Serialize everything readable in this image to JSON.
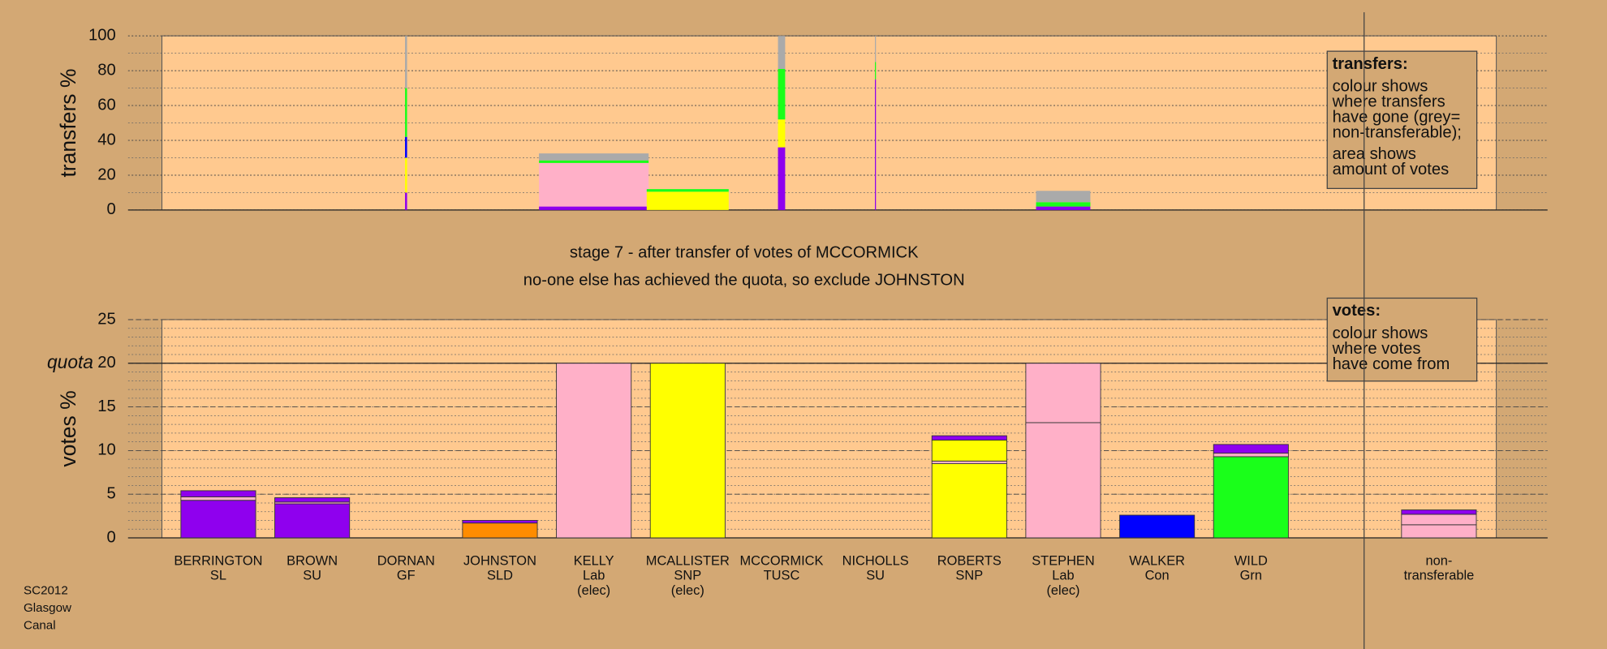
{
  "chart_data": [
    {
      "type": "bar",
      "stacked": true,
      "ylabel": "transfers %",
      "ylim": [
        0,
        100
      ],
      "yticks": [
        0,
        20,
        40,
        60,
        80,
        100
      ],
      "minor_yticks": [
        0,
        10,
        20,
        30,
        40,
        50,
        60,
        70,
        80,
        90,
        100
      ],
      "major_grid": "dotted",
      "bars": [
        {
          "category": 2,
          "amount": 2,
          "segments": [
            {
              "color": "#8f00ee",
              "value": 10
            },
            {
              "color": "#ffff00",
              "value": 20
            },
            {
              "color": "#0000ff",
              "value": 12
            },
            {
              "color": "#1aff1a",
              "value": 28
            },
            {
              "color": "#aaaaaa",
              "value": 30
            }
          ]
        },
        {
          "category": 4,
          "amount": 107,
          "segments": [
            {
              "color": "#8f00ee",
              "value": 2
            },
            {
              "color": "#ffb0c8",
              "value": 25
            },
            {
              "color": "#1aff1a",
              "value": 1.5
            },
            {
              "color": "#aaaaaa",
              "value": 4
            }
          ]
        },
        {
          "category": 5,
          "amount": 80,
          "segments": [
            {
              "color": "#ffff00",
              "value": 10.5
            },
            {
              "color": "#1aff1a",
              "value": 1.5
            }
          ]
        },
        {
          "category": 6,
          "amount": 7,
          "segments": [
            {
              "color": "#8f00ee",
              "value": 36
            },
            {
              "color": "#ffff00",
              "value": 16
            },
            {
              "color": "#1aff1a",
              "value": 29
            },
            {
              "color": "#aaaaaa",
              "value": 19
            }
          ]
        },
        {
          "category": 7,
          "amount": 1,
          "segments": [
            {
              "color": "#8f00ee",
              "value": 75
            },
            {
              "color": "#1aff1a",
              "value": 10
            },
            {
              "color": "#aaaaaa",
              "value": 15
            }
          ]
        },
        {
          "category": 9,
          "amount": 53,
          "segments": [
            {
              "color": "#8f00ee",
              "value": 2
            },
            {
              "color": "#1aff1a",
              "value": 2.5
            },
            {
              "color": "#aaaaaa",
              "value": 6.5
            }
          ]
        }
      ],
      "legend": {
        "title": "transfers:",
        "paragraphs": [
          [
            "colour shows",
            "where transfers",
            "have gone (grey=",
            "non-transferable);"
          ],
          [
            "area shows",
            "amount of votes"
          ]
        ]
      }
    },
    {
      "type": "bar",
      "stacked": true,
      "ylabel": "votes %",
      "ylim": [
        0,
        25
      ],
      "yticks": [
        0,
        5,
        10,
        15,
        20,
        25
      ],
      "minor_yticks": [
        0,
        1,
        2,
        3,
        4,
        5,
        6,
        7,
        8,
        9,
        10,
        11,
        12,
        13,
        14,
        15,
        16,
        17,
        18,
        19,
        20,
        21,
        22,
        23,
        24,
        25
      ],
      "major_grid": "dashed",
      "quota": 20,
      "quota_label": "quota",
      "categories": [
        [
          "BERRINGTON",
          "SL"
        ],
        [
          "BROWN",
          "SU"
        ],
        [
          "DORNAN",
          "GF"
        ],
        [
          "JOHNSTON",
          "SLD"
        ],
        [
          "KELLY",
          "Lab",
          "(elec)"
        ],
        [
          "MCALLISTER",
          "SNP",
          "(elec)"
        ],
        [
          "MCCORMICK",
          "TUSC"
        ],
        [
          "NICHOLLS",
          "SU"
        ],
        [
          "ROBERTS",
          "SNP"
        ],
        [
          "STEPHEN",
          "Lab",
          "(elec)"
        ],
        [
          "WALKER",
          "Con"
        ],
        [
          "WILD",
          "Grn"
        ],
        [
          "non-",
          "transferable"
        ]
      ],
      "segments": [
        [
          {
            "color": "#8f00ee",
            "value": 4.3
          },
          {
            "color": "#ffb0c8",
            "value": 0.4
          },
          {
            "color": "#8f00ee",
            "value": 0.7
          }
        ],
        [
          {
            "color": "#8f00ee",
            "value": 3.9
          },
          {
            "color": "#ffb0c8",
            "value": 0.2
          },
          {
            "color": "#8f00ee",
            "value": 0.5
          }
        ],
        [],
        [
          {
            "color": "#ff8c00",
            "value": 1.7
          },
          {
            "color": "#8f00ee",
            "value": 0.3
          }
        ],
        [
          {
            "color": "#ffb0c8",
            "value": 20
          }
        ],
        [
          {
            "color": "#ffff00",
            "value": 20
          }
        ],
        [],
        [],
        [
          {
            "color": "#ffff00",
            "value": 8.5
          },
          {
            "color": "#ffb0c8",
            "value": 0.3
          },
          {
            "color": "#ffff00",
            "value": 2.4
          },
          {
            "color": "#8f00ee",
            "value": 0.5
          }
        ],
        [
          {
            "color": "#ffb0c8",
            "value": 13.2
          },
          {
            "color": "#ffb0c8",
            "value": 6.8
          }
        ],
        [
          {
            "color": "#0000ff",
            "value": 2.6
          }
        ],
        [
          {
            "color": "#1aff1a",
            "value": 9.3
          },
          {
            "color": "#ffb0c8",
            "value": 0.4
          },
          {
            "color": "#8f00ee",
            "value": 1.0
          }
        ],
        [
          {
            "color": "#ffb0c8",
            "value": 1.5
          },
          {
            "color": "#ffb0c8",
            "value": 1.2
          },
          {
            "color": "#8f00ee",
            "value": 0.5
          }
        ]
      ],
      "legend": {
        "title": "votes:",
        "paragraphs": [
          [
            "colour shows",
            "where votes",
            "have come from"
          ]
        ]
      }
    }
  ],
  "notes": [
    "stage 7 - after transfer of votes of MCCORMICK",
    "no-one else has achieved the quota, so exclude JOHNSTON"
  ],
  "footer": [
    "SC2012",
    "Glasgow",
    "Canal"
  ]
}
